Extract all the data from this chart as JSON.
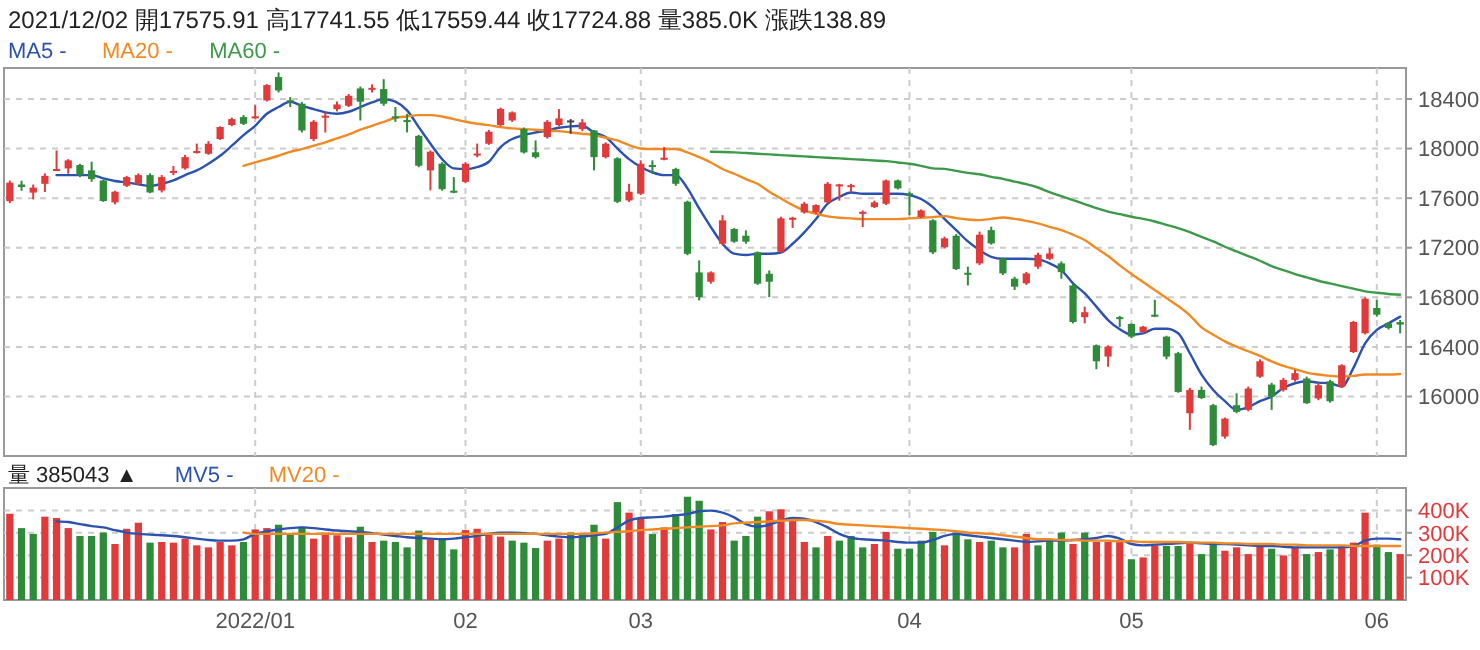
{
  "chart_data": [
    {
      "type": "candlestick",
      "title": "2021/12/02 開17575.91 高17741.55 低17559.44 收17724.88 量385.0K 漲跌138.89",
      "categories": [
        null,
        null,
        null,
        null,
        null,
        null,
        null,
        null,
        null,
        null,
        null,
        null,
        null,
        null,
        null,
        null,
        null,
        null,
        null,
        null,
        null,
        "2022/01",
        null,
        null,
        null,
        null,
        null,
        null,
        null,
        null,
        null,
        null,
        null,
        null,
        null,
        null,
        null,
        null,
        null,
        "02",
        null,
        null,
        null,
        null,
        null,
        null,
        null,
        null,
        null,
        null,
        null,
        null,
        null,
        null,
        "03",
        null,
        null,
        null,
        null,
        null,
        null,
        null,
        null,
        null,
        null,
        null,
        null,
        null,
        null,
        null,
        null,
        null,
        null,
        null,
        null,
        null,
        null,
        "04",
        null,
        null,
        null,
        null,
        null,
        null,
        null,
        null,
        null,
        null,
        null,
        null,
        null,
        null,
        null,
        null,
        null,
        null,
        "05",
        null,
        null,
        null,
        null,
        null,
        null,
        null,
        null,
        null,
        null,
        null,
        null,
        null,
        null,
        null,
        null,
        null,
        null,
        null,
        null,
        "06",
        null,
        null
      ],
      "ohlc": [
        [
          17575.91,
          17741.55,
          17559.44,
          17724.88
        ],
        [
          17710,
          17740,
          17660,
          17690
        ],
        [
          17645,
          17710,
          17590,
          17685
        ],
        [
          17716,
          17800,
          17650,
          17780
        ],
        [
          17830,
          17985,
          17820,
          17835
        ],
        [
          17840,
          17915,
          17797,
          17905
        ],
        [
          17867,
          17877,
          17770,
          17786
        ],
        [
          17824,
          17894,
          17732,
          17754
        ],
        [
          17743,
          17750,
          17570,
          17577
        ],
        [
          17566,
          17660,
          17550,
          17652
        ],
        [
          17700,
          17780,
          17690,
          17770
        ],
        [
          17716,
          17800,
          17705,
          17786
        ],
        [
          17786,
          17800,
          17640,
          17646
        ],
        [
          17662,
          17786,
          17646,
          17770
        ],
        [
          17810,
          17860,
          17786,
          17820
        ],
        [
          17840,
          17950,
          17830,
          17931
        ],
        [
          17970,
          18040,
          17960,
          17980
        ],
        [
          17958,
          18060,
          17950,
          18039
        ],
        [
          18077,
          18180,
          18070,
          18174
        ],
        [
          18190,
          18250,
          18180,
          18238
        ],
        [
          18254,
          18270,
          18190,
          18200
        ],
        [
          18250,
          18350,
          18240,
          18260
        ],
        [
          18388,
          18520,
          18380,
          18512
        ],
        [
          18577,
          18614,
          18453,
          18469
        ],
        [
          18390,
          18415,
          18335,
          18380
        ],
        [
          18362,
          18375,
          18130,
          18146
        ],
        [
          18077,
          18230,
          18060,
          18216
        ],
        [
          18260,
          18290,
          18130,
          18265
        ],
        [
          18318,
          18380,
          18300,
          18356
        ],
        [
          18345,
          18440,
          18335,
          18426
        ],
        [
          18485,
          18500,
          18227,
          18378
        ],
        [
          18480,
          18518,
          18453,
          18490
        ],
        [
          18480,
          18560,
          18345,
          18362
        ],
        [
          18260,
          18335,
          18216,
          18255
        ],
        [
          18230,
          18280,
          18130,
          18225
        ],
        [
          18103,
          18110,
          17850,
          17862
        ],
        [
          17824,
          17985,
          17663,
          17975
        ],
        [
          17878,
          17890,
          17660,
          17673
        ],
        [
          17660,
          17770,
          17640,
          17655
        ],
        [
          17732,
          17890,
          17720,
          17878
        ],
        [
          17950,
          18040,
          17930,
          17960
        ],
        [
          18039,
          18150,
          18030,
          18136
        ],
        [
          18190,
          18330,
          18180,
          18320
        ],
        [
          18227,
          18300,
          18215,
          18292
        ],
        [
          18157,
          18170,
          17960,
          17969
        ],
        [
          17970,
          18066,
          17920,
          17931
        ],
        [
          18093,
          18230,
          18080,
          18216
        ],
        [
          18190,
          18318,
          18180,
          18243
        ],
        [
          18227,
          18238,
          18120,
          18227
        ],
        [
          18157,
          18238,
          18140,
          18211
        ],
        [
          18146,
          18150,
          17824,
          17931
        ],
        [
          17931,
          18050,
          17920,
          18039
        ],
        [
          17921,
          17930,
          17560,
          17571
        ],
        [
          17582,
          17716,
          17570,
          17652
        ],
        [
          17636,
          17905,
          17625,
          17878
        ],
        [
          17867,
          17905,
          17797,
          17862
        ],
        [
          17921,
          18012,
          17905,
          17926
        ],
        [
          17835,
          17845,
          17700,
          17716
        ],
        [
          17571,
          17580,
          17140,
          17151
        ],
        [
          17001,
          17098,
          16775,
          16802
        ],
        [
          16926,
          17010,
          16910,
          17001
        ],
        [
          17232,
          17463,
          17220,
          17421
        ],
        [
          17351,
          17360,
          17240,
          17249
        ],
        [
          17297,
          17340,
          17232,
          17249
        ],
        [
          17163,
          17170,
          16900,
          16910
        ],
        [
          16990,
          17017,
          16802,
          16926
        ],
        [
          17168,
          17450,
          17160,
          17437
        ],
        [
          17437,
          17450,
          17360,
          17442
        ],
        [
          17485,
          17570,
          17475,
          17555
        ],
        [
          17485,
          17550,
          17475,
          17544
        ],
        [
          17566,
          17730,
          17560,
          17716
        ],
        [
          17710,
          17716,
          17580,
          17711
        ],
        [
          17700,
          17716,
          17650,
          17705
        ],
        [
          17485,
          17501,
          17367,
          17490
        ],
        [
          17528,
          17580,
          17520,
          17566
        ],
        [
          17555,
          17750,
          17545,
          17743
        ],
        [
          17743,
          17750,
          17670,
          17679
        ],
        [
          17640,
          17652,
          17463,
          17636
        ],
        [
          17448,
          17510,
          17440,
          17501
        ],
        [
          17421,
          17430,
          17150,
          17163
        ],
        [
          17205,
          17290,
          17195,
          17276
        ],
        [
          17297,
          17310,
          17020,
          17028
        ],
        [
          16998,
          17047,
          16896,
          16993
        ],
        [
          17074,
          17330,
          17060,
          17305
        ],
        [
          17342,
          17370,
          17225,
          17235
        ],
        [
          17111,
          17120,
          16980,
          16993
        ],
        [
          16950,
          16966,
          16859,
          16886
        ],
        [
          16913,
          17005,
          16900,
          16993
        ],
        [
          17047,
          17160,
          17030,
          17143
        ],
        [
          17111,
          17197,
          17100,
          17154
        ],
        [
          17074,
          17090,
          16950,
          17004
        ],
        [
          16896,
          16910,
          16590,
          16601
        ],
        [
          16640,
          16725,
          16590,
          16680
        ],
        [
          16413,
          16420,
          16220,
          16284
        ],
        [
          16322,
          16413,
          16240,
          16403
        ],
        [
          16640,
          16650,
          16560,
          16630
        ],
        [
          16585,
          16590,
          16470,
          16483
        ],
        [
          16521,
          16570,
          16510,
          16563
        ],
        [
          16660,
          16780,
          16640,
          16650
        ],
        [
          16483,
          16490,
          16300,
          16322
        ],
        [
          16349,
          16360,
          16030,
          16037
        ],
        [
          15865,
          16070,
          15731,
          16053
        ],
        [
          16053,
          16080,
          15980,
          15988
        ],
        [
          15930,
          15940,
          15600,
          15608
        ],
        [
          15677,
          15830,
          15660,
          15822
        ],
        [
          15930,
          16026,
          15865,
          15876
        ],
        [
          15892,
          16080,
          15880,
          16064
        ],
        [
          16160,
          16300,
          16150,
          16284
        ],
        [
          16096,
          16110,
          15892,
          16000
        ],
        [
          16053,
          16150,
          16040,
          16134
        ],
        [
          16134,
          16215,
          16120,
          16188
        ],
        [
          16145,
          16160,
          15940,
          15946
        ],
        [
          15984,
          16110,
          15970,
          16091
        ],
        [
          16123,
          16135,
          15950,
          15962
        ],
        [
          16080,
          16260,
          16070,
          16252
        ],
        [
          16359,
          16610,
          16350,
          16601
        ],
        [
          16510,
          16800,
          16500,
          16789
        ],
        [
          16714,
          16778,
          16644,
          16660
        ],
        [
          16590,
          16600,
          16540,
          16553
        ],
        [
          16600,
          16617,
          16510,
          16580
        ]
      ],
      "series": [
        {
          "type": "line",
          "name": "MA5 -",
          "color": "#2c52b0",
          "values": [
            null,
            null,
            null,
            null,
            17786,
            17786,
            17786,
            17786,
            17759,
            17738,
            17727,
            17711,
            17700,
            17716,
            17743,
            17786,
            17824,
            17878,
            17942,
            18023,
            18109,
            18184,
            18281,
            18335,
            18378,
            18345,
            18318,
            18292,
            18281,
            18297,
            18335,
            18372,
            18399,
            18378,
            18308,
            18173,
            18039,
            17915,
            17840,
            17835,
            17851,
            17894,
            18012,
            18077,
            18109,
            18130,
            18146,
            18168,
            18179,
            18184,
            18130,
            18093,
            18001,
            17915,
            17851,
            17808,
            17786,
            17786,
            17679,
            17517,
            17367,
            17232,
            17152,
            17141,
            17152,
            17152,
            17162,
            17232,
            17324,
            17431,
            17555,
            17609,
            17646,
            17636,
            17636,
            17636,
            17636,
            17625,
            17593,
            17528,
            17433,
            17342,
            17251,
            17181,
            17127,
            17111,
            17111,
            17111,
            17106,
            17074,
            17020,
            16913,
            16832,
            16725,
            16617,
            16542,
            16499,
            16510,
            16547,
            16547,
            16510,
            16349,
            16177,
            16053,
            15962,
            15892,
            15914,
            15962,
            16000,
            16069,
            16107,
            16123,
            16112,
            16107,
            16080,
            16231,
            16429,
            16537,
            16590,
            16644
          ]
        },
        {
          "type": "line",
          "name": "MA20 -",
          "color": "#f08a24",
          "values": [
            null,
            null,
            null,
            null,
            null,
            null,
            null,
            null,
            null,
            null,
            null,
            null,
            null,
            null,
            null,
            null,
            null,
            null,
            null,
            null,
            17861,
            17888,
            17915,
            17942,
            17974,
            17996,
            18023,
            18050,
            18082,
            18114,
            18152,
            18184,
            18216,
            18249,
            18259,
            18270,
            18270,
            18259,
            18238,
            18216,
            18200,
            18189,
            18173,
            18163,
            18157,
            18152,
            18146,
            18141,
            18130,
            18120,
            18109,
            18087,
            18066,
            18028,
            18001,
            17996,
            17996,
            17996,
            17969,
            17931,
            17888,
            17835,
            17797,
            17754,
            17716,
            17652,
            17598,
            17544,
            17501,
            17474,
            17453,
            17442,
            17437,
            17431,
            17431,
            17431,
            17431,
            17437,
            17442,
            17447,
            17455,
            17439,
            17428,
            17423,
            17433,
            17444,
            17433,
            17417,
            17396,
            17369,
            17342,
            17305,
            17262,
            17197,
            17133,
            17058,
            16988,
            16923,
            16859,
            16794,
            16730,
            16655,
            16558,
            16499,
            16445,
            16402,
            16365,
            16327,
            16284,
            16247,
            16220,
            16193,
            16177,
            16166,
            16161,
            16166,
            16177,
            16177,
            16177,
            16182
          ]
        },
        {
          "type": "line",
          "name": "MA60 -",
          "color": "#3c9a4a",
          "values": [
            null,
            null,
            null,
            null,
            null,
            null,
            null,
            null,
            null,
            null,
            null,
            null,
            null,
            null,
            null,
            null,
            null,
            null,
            null,
            null,
            null,
            null,
            null,
            null,
            null,
            null,
            null,
            null,
            null,
            null,
            null,
            null,
            null,
            null,
            null,
            null,
            null,
            null,
            null,
            null,
            null,
            null,
            null,
            null,
            null,
            null,
            null,
            null,
            null,
            null,
            null,
            null,
            null,
            null,
            null,
            null,
            null,
            null,
            null,
            null,
            17974,
            17972,
            17969,
            17964,
            17958,
            17953,
            17947,
            17942,
            17937,
            17931,
            17926,
            17921,
            17915,
            17910,
            17904,
            17899,
            17888,
            17878,
            17861,
            17840,
            17836,
            17820,
            17804,
            17793,
            17772,
            17756,
            17734,
            17713,
            17686,
            17648,
            17616,
            17584,
            17552,
            17519,
            17492,
            17471,
            17450,
            17433,
            17412,
            17385,
            17358,
            17326,
            17288,
            17251,
            17208,
            17170,
            17133,
            17095,
            17052,
            17020,
            16988,
            16961,
            16934,
            16912,
            16891,
            16870,
            16848,
            16837,
            16827,
            16821
          ]
        }
      ],
      "ylim": [
        15520,
        18650
      ],
      "yticks": [
        16000,
        16400,
        16800,
        17200,
        17600,
        18000,
        18400
      ],
      "grid": true,
      "legend": "top left",
      "tick_labels": "y"
    },
    {
      "type": "bar",
      "title": "量 385043 ▲",
      "categories": [
        null,
        null,
        null,
        null,
        null,
        null,
        null,
        null,
        null,
        null,
        null,
        null,
        null,
        null,
        null,
        null,
        null,
        null,
        null,
        null,
        null,
        "2022/01",
        null,
        null,
        null,
        null,
        null,
        null,
        null,
        null,
        null,
        null,
        null,
        null,
        null,
        null,
        null,
        null,
        null,
        "02",
        null,
        null,
        null,
        null,
        null,
        null,
        null,
        null,
        null,
        null,
        null,
        null,
        null,
        null,
        "03",
        null,
        null,
        null,
        null,
        null,
        null,
        null,
        null,
        null,
        null,
        null,
        null,
        null,
        null,
        null,
        null,
        null,
        null,
        null,
        null,
        null,
        null,
        "04",
        null,
        null,
        null,
        null,
        null,
        null,
        null,
        null,
        null,
        null,
        null,
        null,
        null,
        null,
        null,
        null,
        null,
        null,
        "05",
        null,
        null,
        null,
        null,
        null,
        null,
        null,
        null,
        null,
        null,
        null,
        null,
        null,
        null,
        null,
        null,
        null,
        null,
        null,
        null,
        "06",
        null,
        null
      ],
      "series": [
        {
          "colors": [
            "#e03a3a",
            "#2e8b3a",
            "#2e8b3a",
            "#e03a3a",
            "#e03a3a",
            "#e03a3a",
            "#2e8b3a",
            "#2e8b3a",
            "#2e8b3a",
            "#e03a3a",
            "#e03a3a",
            "#e03a3a",
            "#2e8b3a",
            "#e03a3a",
            "#e03a3a",
            "#e03a3a",
            "#e03a3a",
            "#e03a3a",
            "#e03a3a",
            "#e03a3a",
            "#2e8b3a",
            "#e03a3a",
            "#e03a3a",
            "#2e8b3a",
            "#2e8b3a",
            "#2e8b3a",
            "#e03a3a",
            "#e03a3a",
            "#e03a3a",
            "#e03a3a",
            "#2e8b3a",
            "#e03a3a",
            "#2e8b3a",
            "#2e8b3a",
            "#2e8b3a",
            "#2e8b3a",
            "#e03a3a",
            "#2e8b3a",
            "#2e8b3a",
            "#e03a3a",
            "#e03a3a",
            "#e03a3a",
            "#e03a3a",
            "#2e8b3a",
            "#2e8b3a",
            "#2e8b3a",
            "#e03a3a",
            "#e03a3a",
            "#2e8b3a",
            "#2e8b3a",
            "#2e8b3a",
            "#e03a3a",
            "#2e8b3a",
            "#e03a3a",
            "#e03a3a",
            "#2e8b3a",
            "#e03a3a",
            "#2e8b3a",
            "#2e8b3a",
            "#2e8b3a",
            "#e03a3a",
            "#e03a3a",
            "#2e8b3a",
            "#2e8b3a",
            "#2e8b3a",
            "#e03a3a",
            "#e03a3a",
            "#e03a3a",
            "#e03a3a",
            "#2e8b3a",
            "#e03a3a",
            "#2e8b3a",
            "#2e8b3a",
            "#2e8b3a",
            "#e03a3a",
            "#e03a3a",
            "#2e8b3a",
            "#2e8b3a",
            "#2e8b3a",
            "#2e8b3a",
            "#e03a3a",
            "#2e8b3a",
            "#2e8b3a",
            "#e03a3a",
            "#2e8b3a",
            "#2e8b3a",
            "#e03a3a",
            "#e03a3a",
            "#2e8b3a",
            "#2e8b3a",
            "#2e8b3a",
            "#e03a3a",
            "#2e8b3a",
            "#e03a3a",
            "#e03a3a",
            "#e03a3a",
            "#2e8b3a",
            "#e03a3a",
            "#e03a3a",
            "#2e8b3a",
            "#2e8b3a",
            "#e03a3a",
            "#2e8b3a",
            "#2e8b3a",
            "#e03a3a",
            "#e03a3a",
            "#e03a3a",
            "#e03a3a",
            "#2e8b3a",
            "#e03a3a",
            "#e03a3a",
            "#2e8b3a",
            "#e03a3a",
            "#2e8b3a",
            "#e03a3a",
            "#e03a3a",
            "#e03a3a",
            "#2e8b3a",
            "#2e8b3a",
            "#e03a3a"
          ],
          "values": [
            385,
            321,
            295,
            372,
            366,
            321,
            286,
            286,
            301,
            250,
            318,
            345,
            256,
            259,
            256,
            274,
            244,
            235,
            259,
            244,
            259,
            315,
            321,
            336,
            295,
            327,
            274,
            301,
            289,
            280,
            327,
            259,
            265,
            259,
            235,
            310,
            271,
            271,
            226,
            312,
            318,
            295,
            283,
            265,
            256,
            232,
            265,
            274,
            301,
            295,
            336,
            274,
            437,
            390,
            363,
            295,
            324,
            384,
            461,
            443,
            315,
            348,
            265,
            286,
            372,
            396,
            405,
            369,
            259,
            235,
            286,
            265,
            286,
            235,
            250,
            304,
            229,
            229,
            265,
            304,
            244,
            301,
            271,
            259,
            265,
            235,
            235,
            295,
            244,
            265,
            301,
            250,
            301,
            259,
            259,
            259,
            182,
            190,
            244,
            241,
            241,
            259,
            205,
            250,
            220,
            235,
            205,
            241,
            229,
            199,
            235,
            205,
            214,
            226,
            241,
            256,
            390,
            247,
            214,
            205
          ]
        },
        {
          "type": "line",
          "name": "MV5 -",
          "color": "#2c52b0",
          "values": [
            null,
            null,
            null,
            null,
            351,
            348,
            339,
            330,
            324,
            312,
            301,
            295,
            292,
            289,
            286,
            280,
            274,
            268,
            265,
            265,
            271,
            295,
            307,
            315,
            321,
            324,
            321,
            315,
            310,
            307,
            304,
            298,
            292,
            286,
            280,
            277,
            274,
            271,
            274,
            280,
            286,
            295,
            301,
            301,
            298,
            295,
            289,
            283,
            280,
            283,
            289,
            295,
            324,
            354,
            366,
            369,
            372,
            378,
            384,
            396,
            399,
            390,
            369,
            339,
            327,
            336,
            354,
            366,
            363,
            348,
            324,
            295,
            277,
            271,
            268,
            265,
            259,
            256,
            256,
            268,
            286,
            295,
            289,
            283,
            277,
            271,
            265,
            259,
            262,
            265,
            265,
            268,
            271,
            277,
            286,
            274,
            250,
            244,
            247,
            250,
            253,
            256,
            253,
            250,
            250,
            247,
            244,
            241,
            241,
            238,
            235,
            235,
            235,
            235,
            235,
            241,
            265,
            274,
            274,
            271
          ]
        },
        {
          "type": "line",
          "name": "MV20 -",
          "color": "#f08a24",
          "values": [
            null,
            null,
            null,
            null,
            null,
            null,
            null,
            null,
            null,
            null,
            null,
            null,
            null,
            null,
            null,
            null,
            null,
            null,
            null,
            null,
            301,
            295,
            295,
            295,
            295,
            295,
            295,
            295,
            295,
            295,
            295,
            295,
            295,
            295,
            295,
            295,
            295,
            295,
            295,
            295,
            295,
            295,
            295,
            295,
            295,
            295,
            295,
            295,
            295,
            295,
            298,
            301,
            304,
            307,
            312,
            315,
            318,
            321,
            324,
            327,
            330,
            333,
            342,
            345,
            348,
            351,
            354,
            357,
            357,
            354,
            348,
            339,
            336,
            333,
            330,
            327,
            324,
            321,
            318,
            315,
            312,
            307,
            301,
            298,
            295,
            289,
            283,
            277,
            271,
            271,
            268,
            268,
            265,
            265,
            265,
            262,
            262,
            259,
            259,
            259,
            259,
            256,
            256,
            256,
            253,
            253,
            250,
            250,
            250,
            247,
            247,
            244,
            244,
            244,
            244,
            241,
            241,
            241,
            241,
            241
          ]
        }
      ],
      "ylim": [
        0,
        500
      ],
      "yticks": [
        {
          "value": 100,
          "label": "100K"
        },
        {
          "value": 200,
          "label": "200K"
        },
        {
          "value": 300,
          "label": "300K"
        },
        {
          "value": 400,
          "label": "400K"
        }
      ],
      "grid": true,
      "legend": "top left"
    }
  ]
}
